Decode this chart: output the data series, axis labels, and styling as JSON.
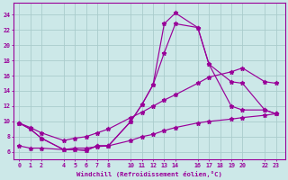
{
  "xlabel": "Windchill (Refroidissement éolien,°C)",
  "background_color": "#cce8e8",
  "grid_color": "#aacccc",
  "line_color": "#990099",
  "x_ticks": [
    0,
    1,
    2,
    4,
    5,
    6,
    7,
    8,
    10,
    11,
    12,
    13,
    14,
    16,
    17,
    18,
    19,
    20,
    22,
    23
  ],
  "yticks": [
    6,
    8,
    10,
    12,
    14,
    16,
    18,
    20,
    22,
    24
  ],
  "xlim": [
    -0.5,
    23.8
  ],
  "ylim": [
    5.0,
    25.5
  ],
  "series1_x": [
    0,
    1,
    2,
    4,
    5,
    6,
    7,
    8,
    10,
    11,
    12,
    13,
    14,
    16,
    17,
    19,
    20,
    22,
    23
  ],
  "series1_y": [
    9.8,
    9.0,
    7.8,
    6.3,
    6.3,
    6.2,
    6.8,
    6.8,
    10.0,
    12.2,
    14.8,
    22.8,
    24.2,
    22.3,
    17.5,
    12.0,
    11.5,
    11.5,
    11.0
  ],
  "series2_x": [
    0,
    1,
    2,
    4,
    5,
    6,
    7,
    8,
    10,
    11,
    12,
    13,
    14,
    16,
    17,
    19,
    20,
    22,
    23
  ],
  "series2_y": [
    9.8,
    9.0,
    7.8,
    6.3,
    6.3,
    6.2,
    6.8,
    6.8,
    10.0,
    12.2,
    14.8,
    19.0,
    22.8,
    22.3,
    17.5,
    15.2,
    15.0,
    11.5,
    11.0
  ],
  "series3_x": [
    0,
    1,
    2,
    4,
    5,
    6,
    7,
    8,
    10,
    11,
    12,
    13,
    14,
    16,
    17,
    19,
    20,
    22,
    23
  ],
  "series3_y": [
    9.8,
    9.2,
    8.5,
    7.5,
    7.8,
    8.0,
    8.5,
    9.0,
    10.5,
    11.2,
    12.0,
    12.8,
    13.5,
    15.0,
    15.8,
    16.5,
    17.0,
    15.2,
    15.0
  ],
  "series4_x": [
    0,
    1,
    2,
    4,
    5,
    6,
    7,
    8,
    10,
    11,
    12,
    13,
    14,
    16,
    17,
    19,
    20,
    22,
    23
  ],
  "series4_y": [
    6.8,
    6.5,
    6.5,
    6.3,
    6.5,
    6.5,
    6.7,
    6.8,
    7.5,
    8.0,
    8.3,
    8.8,
    9.2,
    9.8,
    10.0,
    10.3,
    10.5,
    10.8,
    11.0
  ]
}
